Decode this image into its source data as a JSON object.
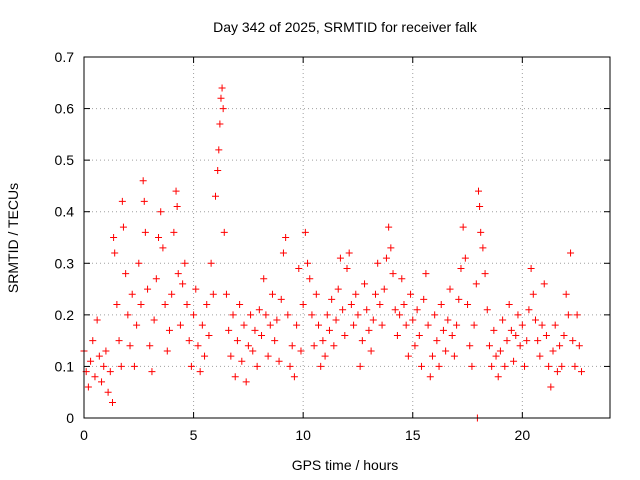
{
  "chart_data": {
    "type": "scatter",
    "title": "Day 342 of 2025, SRMTID for receiver falk",
    "xlabel": "GPS time / hours",
    "ylabel": "SRMTID / TECUs",
    "xlim": [
      0,
      24
    ],
    "ylim": [
      0,
      0.7
    ],
    "grid": true,
    "marker": "plus",
    "colors": {
      "points": "#ff0000",
      "grid": "#a0a0a0",
      "axis": "#000000"
    },
    "x_ticks": [
      0,
      5,
      10,
      15,
      20
    ],
    "x_tick_labels": [
      "0",
      "5",
      "10",
      "15",
      "20"
    ],
    "y_ticks": [
      0,
      0.1,
      0.2,
      0.3,
      0.4,
      0.5,
      0.6,
      0.7
    ],
    "y_tick_labels": [
      "0",
      "0.1",
      "0.2",
      "0.3",
      "0.4",
      "0.5",
      "0.6",
      "0.7"
    ],
    "series": [
      {
        "name": "SRMTID",
        "points": [
          [
            0.0,
            0.13
          ],
          [
            0.1,
            0.09
          ],
          [
            0.2,
            0.06
          ],
          [
            0.3,
            0.11
          ],
          [
            0.4,
            0.15
          ],
          [
            0.5,
            0.08
          ],
          [
            0.6,
            0.19
          ],
          [
            0.7,
            0.12
          ],
          [
            0.8,
            0.07
          ],
          [
            0.9,
            0.1
          ],
          [
            1.0,
            0.13
          ],
          [
            1.1,
            0.05
          ],
          [
            1.2,
            0.09
          ],
          [
            1.3,
            0.03
          ],
          [
            1.35,
            0.35
          ],
          [
            1.4,
            0.32
          ],
          [
            1.5,
            0.22
          ],
          [
            1.6,
            0.15
          ],
          [
            1.7,
            0.1
          ],
          [
            1.75,
            0.42
          ],
          [
            1.8,
            0.37
          ],
          [
            1.9,
            0.28
          ],
          [
            2.0,
            0.2
          ],
          [
            2.1,
            0.14
          ],
          [
            2.2,
            0.24
          ],
          [
            2.3,
            0.1
          ],
          [
            2.4,
            0.18
          ],
          [
            2.5,
            0.3
          ],
          [
            2.6,
            0.22
          ],
          [
            2.7,
            0.46
          ],
          [
            2.75,
            0.42
          ],
          [
            2.8,
            0.36
          ],
          [
            2.9,
            0.25
          ],
          [
            3.0,
            0.14
          ],
          [
            3.1,
            0.09
          ],
          [
            3.2,
            0.19
          ],
          [
            3.3,
            0.27
          ],
          [
            3.4,
            0.35
          ],
          [
            3.5,
            0.4
          ],
          [
            3.6,
            0.33
          ],
          [
            3.7,
            0.22
          ],
          [
            3.8,
            0.13
          ],
          [
            3.9,
            0.17
          ],
          [
            4.0,
            0.24
          ],
          [
            4.1,
            0.36
          ],
          [
            4.2,
            0.44
          ],
          [
            4.25,
            0.41
          ],
          [
            4.3,
            0.28
          ],
          [
            4.4,
            0.18
          ],
          [
            4.5,
            0.26
          ],
          [
            4.6,
            0.3
          ],
          [
            4.7,
            0.22
          ],
          [
            4.8,
            0.15
          ],
          [
            4.9,
            0.1
          ],
          [
            5.0,
            0.2
          ],
          [
            5.1,
            0.25
          ],
          [
            5.2,
            0.14
          ],
          [
            5.3,
            0.09
          ],
          [
            5.4,
            0.18
          ],
          [
            5.5,
            0.12
          ],
          [
            5.6,
            0.22
          ],
          [
            5.7,
            0.16
          ],
          [
            5.8,
            0.3
          ],
          [
            5.9,
            0.24
          ],
          [
            6.0,
            0.43
          ],
          [
            6.1,
            0.48
          ],
          [
            6.15,
            0.52
          ],
          [
            6.2,
            0.57
          ],
          [
            6.25,
            0.62
          ],
          [
            6.3,
            0.64
          ],
          [
            6.35,
            0.6
          ],
          [
            6.4,
            0.36
          ],
          [
            6.5,
            0.24
          ],
          [
            6.6,
            0.17
          ],
          [
            6.7,
            0.12
          ],
          [
            6.8,
            0.2
          ],
          [
            6.9,
            0.08
          ],
          [
            7.0,
            0.15
          ],
          [
            7.1,
            0.22
          ],
          [
            7.2,
            0.11
          ],
          [
            7.3,
            0.18
          ],
          [
            7.4,
            0.07
          ],
          [
            7.5,
            0.14
          ],
          [
            7.6,
            0.2
          ],
          [
            7.7,
            0.13
          ],
          [
            7.8,
            0.17
          ],
          [
            7.9,
            0.1
          ],
          [
            8.0,
            0.21
          ],
          [
            8.1,
            0.16
          ],
          [
            8.2,
            0.27
          ],
          [
            8.3,
            0.2
          ],
          [
            8.4,
            0.12
          ],
          [
            8.5,
            0.18
          ],
          [
            8.6,
            0.24
          ],
          [
            8.7,
            0.15
          ],
          [
            8.8,
            0.19
          ],
          [
            8.9,
            0.11
          ],
          [
            9.0,
            0.23
          ],
          [
            9.1,
            0.32
          ],
          [
            9.2,
            0.35
          ],
          [
            9.3,
            0.2
          ],
          [
            9.4,
            0.1
          ],
          [
            9.5,
            0.14
          ],
          [
            9.6,
            0.08
          ],
          [
            9.7,
            0.18
          ],
          [
            9.8,
            0.29
          ],
          [
            9.9,
            0.13
          ],
          [
            10.0,
            0.22
          ],
          [
            10.1,
            0.36
          ],
          [
            10.2,
            0.3
          ],
          [
            10.3,
            0.27
          ],
          [
            10.4,
            0.2
          ],
          [
            10.5,
            0.14
          ],
          [
            10.6,
            0.24
          ],
          [
            10.7,
            0.18
          ],
          [
            10.8,
            0.1
          ],
          [
            10.9,
            0.15
          ],
          [
            11.0,
            0.12
          ],
          [
            11.1,
            0.2
          ],
          [
            11.2,
            0.17
          ],
          [
            11.3,
            0.23
          ],
          [
            11.4,
            0.14
          ],
          [
            11.5,
            0.19
          ],
          [
            11.6,
            0.25
          ],
          [
            11.7,
            0.31
          ],
          [
            11.8,
            0.21
          ],
          [
            11.9,
            0.16
          ],
          [
            12.0,
            0.29
          ],
          [
            12.1,
            0.32
          ],
          [
            12.2,
            0.22
          ],
          [
            12.3,
            0.18
          ],
          [
            12.4,
            0.24
          ],
          [
            12.5,
            0.2
          ],
          [
            12.6,
            0.1
          ],
          [
            12.7,
            0.15
          ],
          [
            12.8,
            0.26
          ],
          [
            12.9,
            0.21
          ],
          [
            13.0,
            0.17
          ],
          [
            13.1,
            0.13
          ],
          [
            13.2,
            0.19
          ],
          [
            13.3,
            0.24
          ],
          [
            13.4,
            0.3
          ],
          [
            13.5,
            0.22
          ],
          [
            13.6,
            0.18
          ],
          [
            13.7,
            0.25
          ],
          [
            13.8,
            0.31
          ],
          [
            13.9,
            0.37
          ],
          [
            14.0,
            0.33
          ],
          [
            14.1,
            0.28
          ],
          [
            14.2,
            0.21
          ],
          [
            14.3,
            0.16
          ],
          [
            14.4,
            0.2
          ],
          [
            14.5,
            0.27
          ],
          [
            14.6,
            0.22
          ],
          [
            14.7,
            0.18
          ],
          [
            14.8,
            0.12
          ],
          [
            14.9,
            0.24
          ],
          [
            15.0,
            0.19
          ],
          [
            15.1,
            0.14
          ],
          [
            15.2,
            0.21
          ],
          [
            15.3,
            0.16
          ],
          [
            15.4,
            0.1
          ],
          [
            15.5,
            0.23
          ],
          [
            15.6,
            0.28
          ],
          [
            15.7,
            0.18
          ],
          [
            15.8,
            0.08
          ],
          [
            15.9,
            0.12
          ],
          [
            16.0,
            0.2
          ],
          [
            16.1,
            0.15
          ],
          [
            16.2,
            0.1
          ],
          [
            16.3,
            0.22
          ],
          [
            16.4,
            0.17
          ],
          [
            16.5,
            0.13
          ],
          [
            16.6,
            0.19
          ],
          [
            16.7,
            0.25
          ],
          [
            16.8,
            0.16
          ],
          [
            16.9,
            0.12
          ],
          [
            17.0,
            0.18
          ],
          [
            17.1,
            0.23
          ],
          [
            17.2,
            0.29
          ],
          [
            17.3,
            0.37
          ],
          [
            17.4,
            0.31
          ],
          [
            17.5,
            0.22
          ],
          [
            17.6,
            0.14
          ],
          [
            17.7,
            0.1
          ],
          [
            17.8,
            0.18
          ],
          [
            17.9,
            0.26
          ],
          [
            18.0,
            0.44
          ],
          [
            18.05,
            0.41
          ],
          [
            18.1,
            0.36
          ],
          [
            18.2,
            0.33
          ],
          [
            18.3,
            0.28
          ],
          [
            18.4,
            0.21
          ],
          [
            18.5,
            0.14
          ],
          [
            18.6,
            0.1
          ],
          [
            18.7,
            0.17
          ],
          [
            18.8,
            0.12
          ],
          [
            18.9,
            0.08
          ],
          [
            19.0,
            0.13
          ],
          [
            19.1,
            0.19
          ],
          [
            19.2,
            0.1
          ],
          [
            19.3,
            0.15
          ],
          [
            19.4,
            0.22
          ],
          [
            19.5,
            0.17
          ],
          [
            19.6,
            0.11
          ],
          [
            19.7,
            0.16
          ],
          [
            19.8,
            0.2
          ],
          [
            19.9,
            0.14
          ],
          [
            20.0,
            0.18
          ],
          [
            20.1,
            0.1
          ],
          [
            20.2,
            0.15
          ],
          [
            20.3,
            0.21
          ],
          [
            20.4,
            0.29
          ],
          [
            20.5,
            0.24
          ],
          [
            20.6,
            0.19
          ],
          [
            20.7,
            0.15
          ],
          [
            20.8,
            0.12
          ],
          [
            20.9,
            0.18
          ],
          [
            21.0,
            0.26
          ],
          [
            21.1,
            0.16
          ],
          [
            21.2,
            0.1
          ],
          [
            21.3,
            0.06
          ],
          [
            21.4,
            0.13
          ],
          [
            21.5,
            0.18
          ],
          [
            21.6,
            0.09
          ],
          [
            21.7,
            0.14
          ],
          [
            21.8,
            0.1
          ],
          [
            21.9,
            0.16
          ],
          [
            22.0,
            0.24
          ],
          [
            22.1,
            0.2
          ],
          [
            22.2,
            0.32
          ],
          [
            22.3,
            0.15
          ],
          [
            22.4,
            0.1
          ],
          [
            22.5,
            0.2
          ],
          [
            22.6,
            0.14
          ],
          [
            22.7,
            0.09
          ],
          [
            17.95,
            0.0
          ]
        ]
      }
    ]
  }
}
